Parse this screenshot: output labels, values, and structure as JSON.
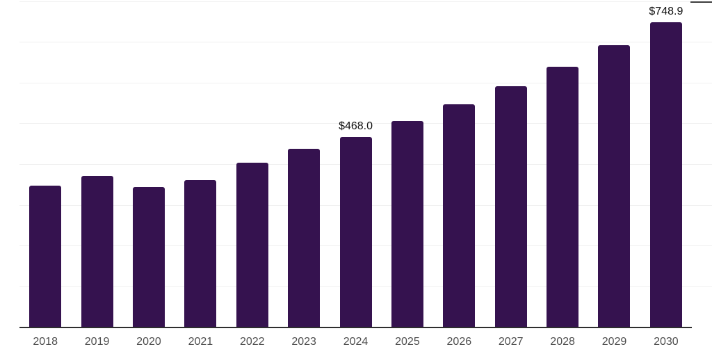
{
  "chart_data": {
    "type": "bar",
    "title": "",
    "xlabel": "",
    "ylabel": "",
    "categories": [
      "2018",
      "2019",
      "2020",
      "2021",
      "2022",
      "2023",
      "2024",
      "2025",
      "2026",
      "2027",
      "2028",
      "2029",
      "2030"
    ],
    "values": [
      348,
      372,
      345,
      362,
      404,
      438,
      468.0,
      506,
      547,
      592,
      640,
      693,
      748.9
    ],
    "data_labels": [
      "",
      "",
      "",
      "",
      "",
      "",
      "$468.0",
      "",
      "",
      "",
      "",
      "",
      "$748.9"
    ],
    "ylim": [
      0,
      800
    ],
    "gridline_interval": 100,
    "grid": "horizontal",
    "legend_position": "none",
    "colors": {
      "bar": "#35124F",
      "axis_line": "#2e2e2e",
      "gridline": "#f0f0f0",
      "year_label": "#4d4d4d",
      "data_label": "#111111",
      "background": "#ffffff"
    }
  }
}
